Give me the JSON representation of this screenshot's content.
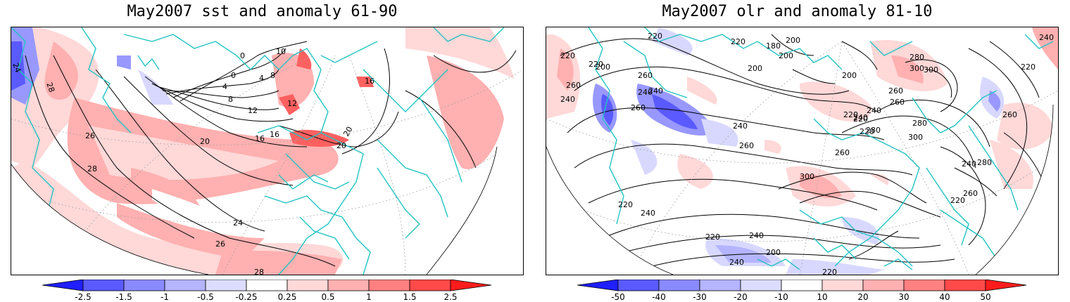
{
  "panels": [
    {
      "title": "May2007 sst and anomaly 61-90",
      "contour_labels": [
        "24",
        "28",
        "26",
        "28",
        "24",
        "26",
        "28",
        "20",
        "16",
        "12",
        "8",
        "4",
        "0",
        "0",
        "4",
        "8",
        "10",
        "12",
        "16",
        "20",
        "16",
        "20"
      ],
      "colorbar": {
        "ticks": [
          "-2.5",
          "-1.5",
          "-1",
          "-0.5",
          "-0.25",
          "0.25",
          "0.5",
          "1",
          "1.5",
          "2.5"
        ],
        "colors": [
          "#1f1fff",
          "#5a5aff",
          "#8a8aff",
          "#b4b4ff",
          "#dcdcff",
          "#ffffff",
          "#ffd8d8",
          "#ffb0b0",
          "#ff8080",
          "#ff4a4a",
          "#ff1c1c"
        ]
      }
    },
    {
      "title": "May2007 olr and anomaly 81-10",
      "contour_labels": [
        "220",
        "200",
        "260",
        "240",
        "220",
        "220",
        "200",
        "180",
        "200",
        "200",
        "220",
        "240",
        "260",
        "280",
        "300",
        "300",
        "220",
        "240",
        "260",
        "240",
        "220",
        "260",
        "240",
        "260",
        "260",
        "280",
        "300",
        "300",
        "280",
        "260",
        "240",
        "220",
        "200",
        "220",
        "240",
        "260",
        "280",
        "260",
        "220",
        "240",
        "220",
        "240",
        "220",
        "200",
        "240",
        "240",
        "220"
      ],
      "colorbar": {
        "ticks": [
          "-50",
          "-40",
          "-30",
          "-20",
          "-10",
          "10",
          "20",
          "30",
          "40",
          "50"
        ],
        "colors": [
          "#1f1fff",
          "#5a5aff",
          "#8a8aff",
          "#b4b4ff",
          "#dcdcff",
          "#ffffff",
          "#ffd8d8",
          "#ffb0b0",
          "#ff8080",
          "#ff4a4a",
          "#ff1c1c"
        ]
      }
    }
  ],
  "colors": {
    "coast": "#22c3c3",
    "contour": "#000000",
    "positive_light": "#ffd8d8",
    "positive_mid": "#ffb0b0",
    "positive_strong": "#ff6060",
    "negative_light": "#d8d8ff",
    "negative_mid": "#9898ff",
    "negative_strong": "#5a5aff"
  }
}
